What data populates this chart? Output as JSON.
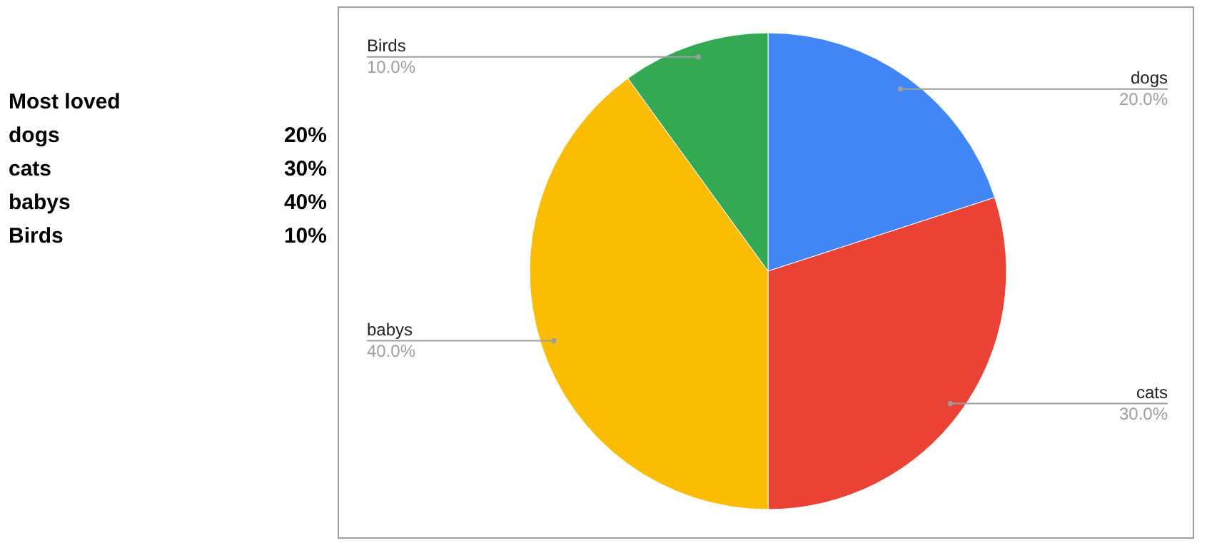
{
  "chart_data": [
    {
      "type": "other",
      "title": "Most loved",
      "annotations": [
        "dogs",
        "20%",
        "cats",
        "30%",
        "babys",
        "40%",
        "Birds",
        "10%"
      ]
    },
    {
      "type": "pie",
      "categories": [
        "dogs",
        "cats",
        "babys",
        "Birds"
      ],
      "values": [
        20,
        30,
        40,
        10
      ],
      "colors": [
        "#4285f4",
        "#ea4335",
        "#fbbc04",
        "#34a853"
      ],
      "value_labels": [
        "20.0%",
        "30.0%",
        "40.0%",
        "10.0%"
      ]
    }
  ]
}
